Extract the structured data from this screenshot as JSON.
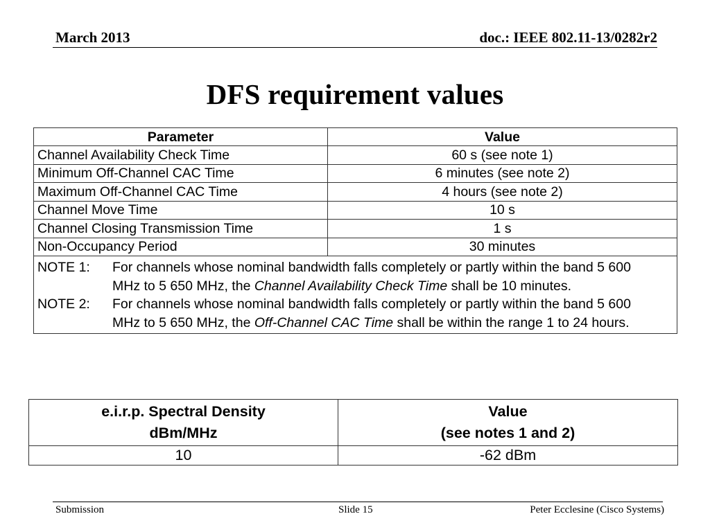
{
  "header": {
    "date": "March 2013",
    "doc": "doc.: IEEE 802.11-13/0282r2"
  },
  "title": "DFS requirement values",
  "table1": {
    "headers": [
      "Parameter",
      "Value"
    ],
    "rows": [
      [
        "Channel Availability Check Time",
        "60 s (see note 1)"
      ],
      [
        "Minimum Off-Channel CAC Time",
        "6 minutes (see note 2)"
      ],
      [
        "Maximum Off-Channel CAC Time",
        "4 hours (see note 2)"
      ],
      [
        "Channel Move Time",
        "10 s"
      ],
      [
        "Channel Closing Transmission Time",
        "1 s"
      ],
      [
        "Non-Occupancy Period",
        "30 minutes"
      ]
    ],
    "notes": [
      {
        "label": "NOTE 1:",
        "before": "For channels whose nominal bandwidth falls completely or partly within the band 5 600 MHz to 5 650 MHz, the ",
        "emph": "Channel Availability Check Time",
        "after": " shall be 10 minutes."
      },
      {
        "label": "NOTE 2:",
        "before": "For channels whose nominal bandwidth falls completely or partly within the band 5 600 MHz to 5 650 MHz, the ",
        "emph": "Off-Channel CAC Time",
        "after": " shall be within the range 1 to 24 hours."
      }
    ]
  },
  "table2": {
    "header_col1_line1": "e.i.r.p. Spectral Density",
    "header_col1_line2": "dBm/MHz",
    "header_col2_line1": "Value",
    "header_col2_line2": "(see notes 1 and 2)",
    "row": [
      "10",
      "-62 dBm"
    ]
  },
  "footer": {
    "left": "Submission",
    "center": "Slide 15",
    "right": "Peter Ecclesine (Cisco Systems)"
  }
}
